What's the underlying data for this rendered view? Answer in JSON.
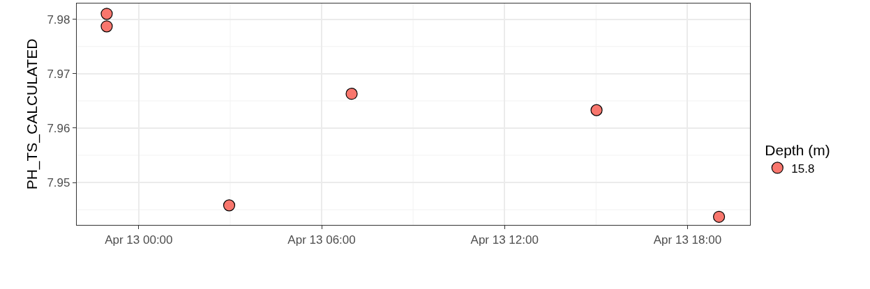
{
  "chart_data": {
    "type": "scatter",
    "ylabel": "PH_TS_CALCULATED",
    "legend_title": "Depth (m)",
    "x": [
      "--04-12T22:57",
      "--04-12T22:57",
      "--04-13T02:58",
      "--04-13T06:59",
      "--04-13T15:01",
      "--04-13T19:02"
    ],
    "series": [
      {
        "name": "15.8",
        "color": "#f8766d",
        "values": [
          7.981,
          7.9787,
          7.9458,
          7.9663,
          7.9633,
          7.9437
        ]
      }
    ],
    "xlim": [
      "--04-12T21:58",
      "--04-13T20:03"
    ],
    "xticks": [
      {
        "value": "--04-13T00:00",
        "label": "Apr 13 00:00"
      },
      {
        "value": "--04-13T06:00",
        "label": "Apr 13 06:00"
      },
      {
        "value": "--04-13T12:00",
        "label": "Apr 13 12:00"
      },
      {
        "value": "--04-13T18:00",
        "label": "Apr 13 18:00"
      }
    ],
    "ylim": [
      7.9422,
      7.9829
    ],
    "yticks": [
      7.95,
      7.96,
      7.97,
      7.98
    ],
    "grid": true,
    "legend": "right",
    "marker": "circle"
  }
}
